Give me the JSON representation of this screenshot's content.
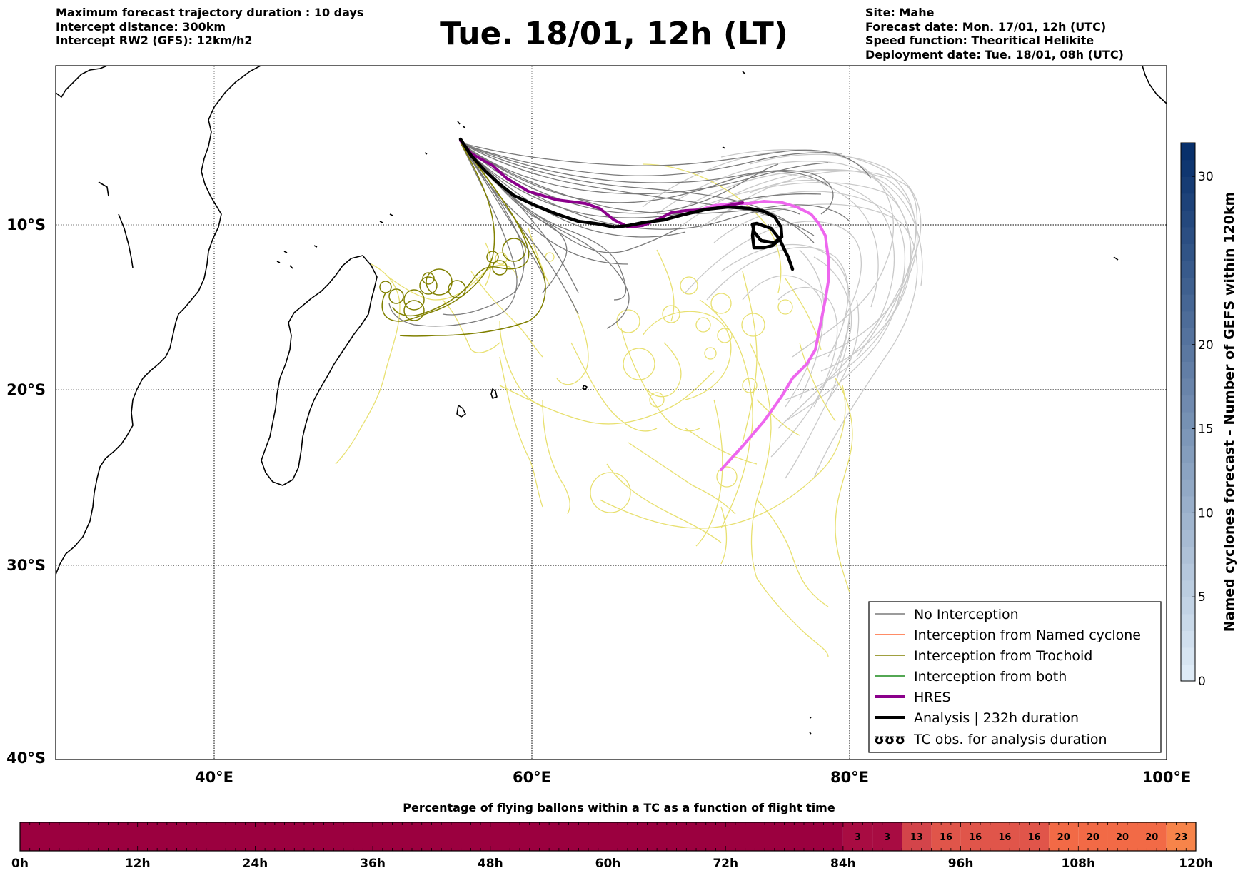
{
  "header_left": [
    "Maximum forecast trajectory duration : 10 days",
    "Intercept distance: 300km",
    "Intercept RW2 (GFS):  12km/h2"
  ],
  "title": "Tue. 18/01, 12h (LT)",
  "header_right": [
    "Site: Mahe",
    "Forecast date: Mon. 17/01, 12h (UTC)",
    "Speed function: Theoritical Helikite",
    "Deployment date: Tue. 18/01, 08h (UTC)"
  ],
  "map": {
    "lon_ticks": [
      "40°E",
      "60°E",
      "80°E",
      "100°E"
    ],
    "lat_ticks": [
      "10°S",
      "20°S",
      "30°S",
      "40°S"
    ],
    "lon_range": [
      30,
      100
    ],
    "lat_range": [
      -40,
      -0.3
    ],
    "colors": {
      "no_interception": "#7a7a7a",
      "no_interception_light": "#c8c8c8",
      "named_cyclone": "#ff6633",
      "trochoid": "#808000",
      "both": "#1a8a1a",
      "hres": "#8b008b",
      "analysis": "#000000",
      "tc_obs": "#ee77ee",
      "yellow_tracks": "#e8e070"
    }
  },
  "legend": [
    {
      "label": "No Interception",
      "style": "thin-gray"
    },
    {
      "label": "Interception from Named cyclone",
      "style": "thin-orange"
    },
    {
      "label": "Interception from Trochoid",
      "style": "thin-olive"
    },
    {
      "label": "Interception from both",
      "style": "thin-green"
    },
    {
      "label": "HRES",
      "style": "thick-purple"
    },
    {
      "label": "Analysis | 232h duration",
      "style": "thick-black"
    },
    {
      "label": "TC obs. for analysis duration",
      "style": "curl-symbol",
      "symbol": "ʊʊʊ"
    }
  ],
  "colorbar": {
    "label": "Named cyclones forecast - Number of GEFS within 120km",
    "ticks": [
      "0",
      "5",
      "10",
      "15",
      "20",
      "30"
    ],
    "tick_values": [
      0,
      5,
      10,
      15,
      20,
      30
    ],
    "range": [
      0,
      32
    ]
  },
  "time_bar": {
    "title": "Percentage of flying ballons within a TC as a function of flight time",
    "tick_labels": [
      "0h",
      "12h",
      "24h",
      "36h",
      "48h",
      "60h",
      "72h",
      "84h",
      "96h",
      "108h",
      "120h"
    ],
    "segments": [
      {
        "from_h": 0,
        "to_h": 84,
        "value": "",
        "color": "#9b003f"
      },
      {
        "from_h": 84,
        "to_h": 87,
        "value": "3",
        "color": "#a80c42"
      },
      {
        "from_h": 87,
        "to_h": 90,
        "value": "3",
        "color": "#a80c42"
      },
      {
        "from_h": 90,
        "to_h": 93,
        "value": "13",
        "color": "#d3444a"
      },
      {
        "from_h": 93,
        "to_h": 96,
        "value": "16",
        "color": "#e0554a"
      },
      {
        "from_h": 96,
        "to_h": 99,
        "value": "16",
        "color": "#e0554a"
      },
      {
        "from_h": 99,
        "to_h": 102,
        "value": "16",
        "color": "#e0554a"
      },
      {
        "from_h": 102,
        "to_h": 105,
        "value": "16",
        "color": "#e0554a"
      },
      {
        "from_h": 105,
        "to_h": 108,
        "value": "20",
        "color": "#f26a46"
      },
      {
        "from_h": 108,
        "to_h": 111,
        "value": "20",
        "color": "#f26a46"
      },
      {
        "from_h": 111,
        "to_h": 114,
        "value": "20",
        "color": "#f26a46"
      },
      {
        "from_h": 114,
        "to_h": 117,
        "value": "20",
        "color": "#f26a46"
      },
      {
        "from_h": 117,
        "to_h": 120,
        "value": "23",
        "color": "#f7844a"
      }
    ]
  }
}
